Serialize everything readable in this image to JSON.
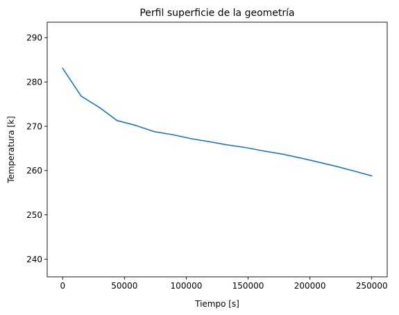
{
  "chart_data": {
    "type": "line",
    "title": "Perfil superficie de la geometría",
    "xlabel": "Tiempo [s]",
    "ylabel": "Temperatura [k]",
    "xlim": [
      -12500,
      262500
    ],
    "ylim": [
      236,
      293.5
    ],
    "xticks": [
      0,
      50000,
      100000,
      150000,
      200000,
      250000
    ],
    "xtick_labels": [
      "0",
      "50000",
      "100000",
      "150000",
      "200000",
      "250000"
    ],
    "yticks": [
      240,
      250,
      260,
      270,
      280,
      290
    ],
    "ytick_labels": [
      "240",
      "250",
      "260",
      "270",
      "280",
      "290"
    ],
    "grid": false,
    "series": [
      {
        "color": "#1f77b4",
        "x": [
          0,
          15000,
          30000,
          44000,
          59000,
          74000,
          89000,
          104000,
          119000,
          133000,
          148000,
          163000,
          178000,
          193000,
          207000,
          222000,
          237000,
          250000
        ],
        "y": [
          283.1,
          276.8,
          274.2,
          271.3,
          270.2,
          268.8,
          268.1,
          267.2,
          266.5,
          265.8,
          265.2,
          264.4,
          263.7,
          262.8,
          261.9,
          260.9,
          259.8,
          258.8
        ]
      }
    ]
  }
}
